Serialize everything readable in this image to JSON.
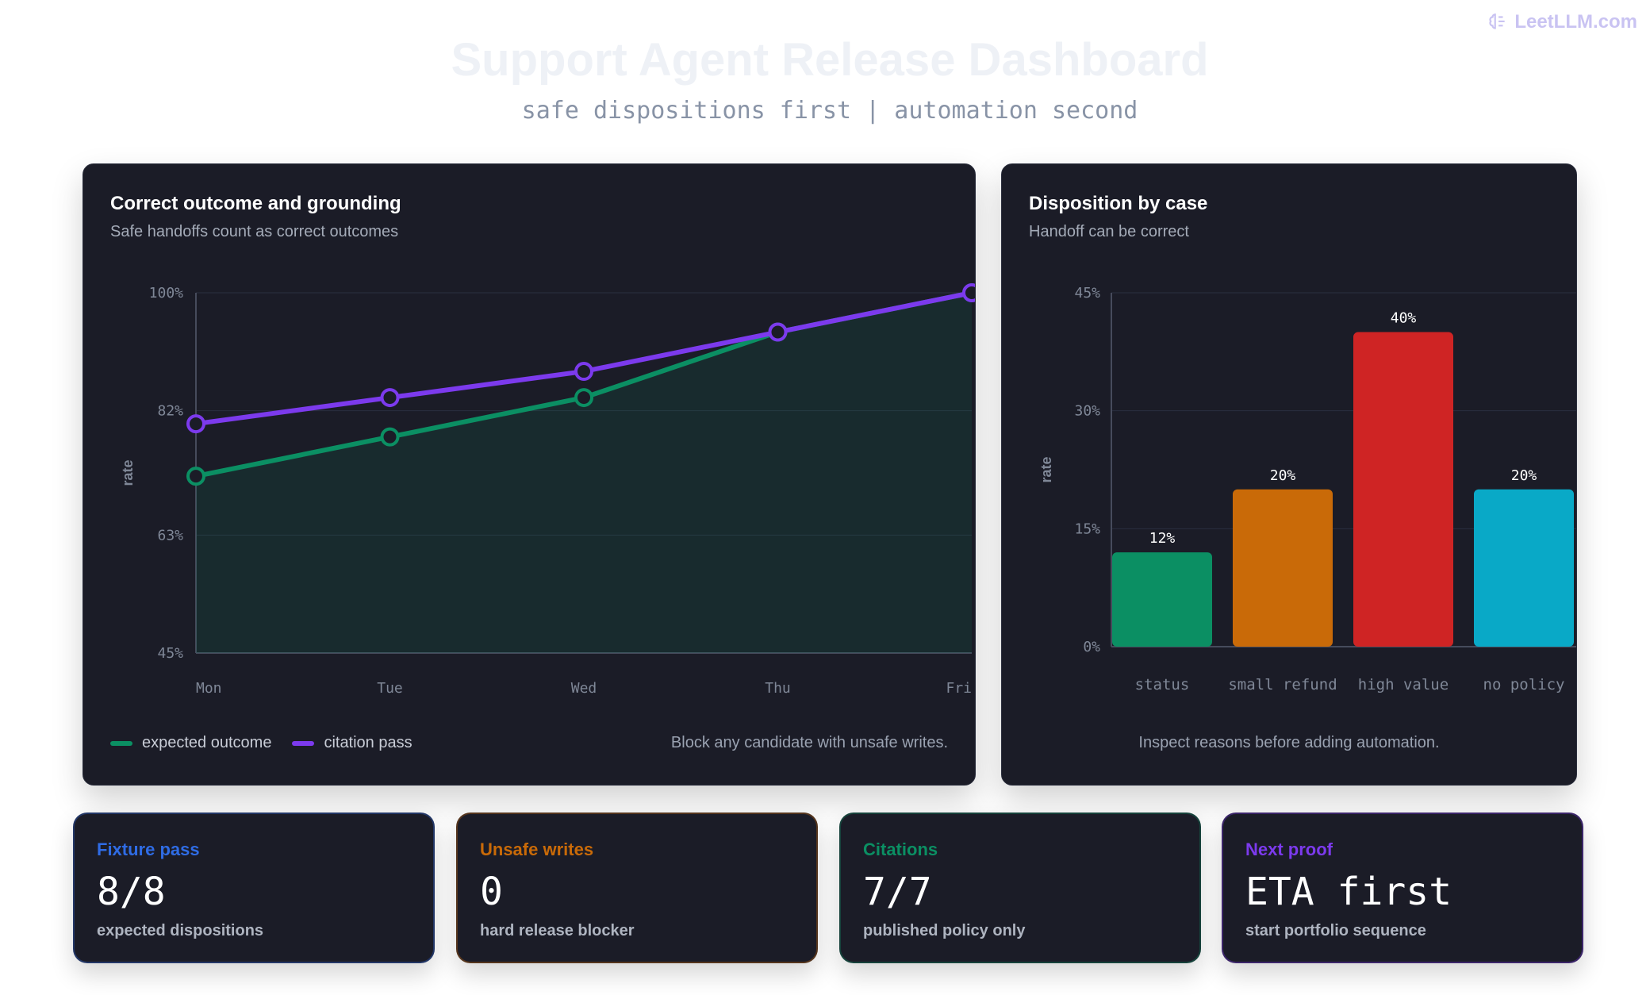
{
  "brand": {
    "text": "LeetLLM.com",
    "icon": "brain-icon"
  },
  "header": {
    "title": "Support Agent Release Dashboard",
    "subtitle": "safe dispositions first | automation second"
  },
  "colors": {
    "green": "#0b8f63",
    "purple": "#7c3aed",
    "orange": "#c96a08",
    "red": "#cf2424",
    "cyan": "#09a9c7",
    "blue": "#2f6ce5"
  },
  "left_panel": {
    "title": "Correct outcome and grounding",
    "subtitle": "Safe handoffs count as correct outcomes",
    "footnote": "Block any candidate with unsafe writes."
  },
  "right_panel": {
    "title": "Disposition by case",
    "subtitle": "Handoff can be correct",
    "footnote": "Inspect reasons before adding automation."
  },
  "chart_data": [
    {
      "type": "line",
      "title": "Correct outcome and grounding",
      "ylabel": "rate",
      "categories": [
        "Mon",
        "Tue",
        "Wed",
        "Thu",
        "Fri"
      ],
      "ylim": [
        45,
        100
      ],
      "yticks": [
        45,
        63,
        82,
        100
      ],
      "ytick_labels": [
        "45%",
        "63%",
        "82%",
        "100%"
      ],
      "grid": true,
      "legend": "bottom-left",
      "series": [
        {
          "name": "expected outcome",
          "color": "#0b8f63",
          "values": [
            72,
            78,
            84,
            94,
            100
          ],
          "fill": true
        },
        {
          "name": "citation pass",
          "color": "#7c3aed",
          "values": [
            80,
            84,
            88,
            94,
            100
          ]
        }
      ]
    },
    {
      "type": "bar",
      "title": "Disposition by case",
      "ylabel": "rate",
      "categories": [
        "status",
        "small refund",
        "high value",
        "no policy"
      ],
      "values": [
        12,
        20,
        40,
        20
      ],
      "value_labels": [
        "12%",
        "20%",
        "40%",
        "20%"
      ],
      "colors": [
        "#0b8f63",
        "#c96a08",
        "#cf2424",
        "#09a9c7"
      ],
      "ylim": [
        0,
        45
      ],
      "yticks": [
        0,
        15,
        30,
        45
      ],
      "ytick_labels": [
        "0%",
        "15%",
        "30%",
        "45%"
      ],
      "grid": true
    }
  ],
  "cards": [
    {
      "label": "Fixture pass",
      "value": "8/8",
      "desc": "expected dispositions",
      "color": "#2f6ce5"
    },
    {
      "label": "Unsafe writes",
      "value": "0",
      "desc": "hard release blocker",
      "color": "#c96a08"
    },
    {
      "label": "Citations",
      "value": "7/7",
      "desc": "published policy only",
      "color": "#0b8f63"
    },
    {
      "label": "Next proof",
      "value": "ETA first",
      "desc": "start portfolio sequence",
      "color": "#7c3aed"
    }
  ]
}
